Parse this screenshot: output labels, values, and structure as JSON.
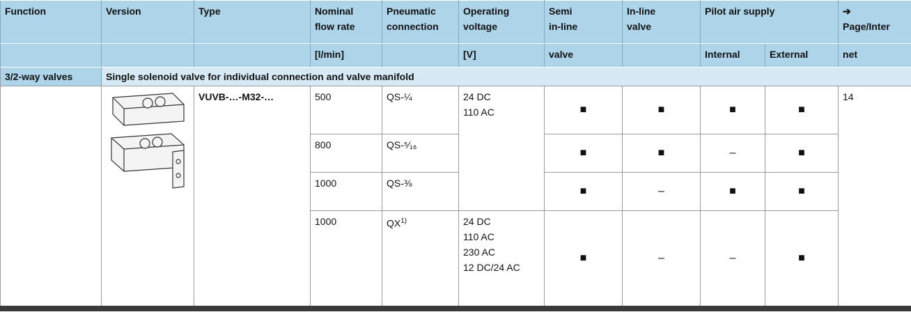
{
  "header": {
    "group": "Pilot air supply",
    "columns": [
      {
        "top": [
          "Function"
        ]
      },
      {
        "top": [
          "Version"
        ]
      },
      {
        "top": [
          "Type"
        ]
      },
      {
        "top": [
          "Nominal",
          "flow rate"
        ],
        "bottom": "[l/min]"
      },
      {
        "top": [
          "Pneumatic",
          "connection"
        ]
      },
      {
        "top": [
          "Operating",
          "voltage"
        ],
        "bottom": "[V]"
      },
      {
        "top": [
          "Semi",
          "in-line"
        ],
        "bottom": "valve"
      },
      {
        "top": [
          "In-line",
          "valve"
        ]
      },
      {
        "bottom": "Internal"
      },
      {
        "bottom": "External"
      },
      {
        "top": [
          "➔",
          "Page/Inter"
        ],
        "bottom": "net"
      }
    ]
  },
  "section": {
    "function": "3/2-way valves",
    "title": "Single solenoid valve for individual connection and valve manifold"
  },
  "product": {
    "type": "VUVB-…-M32-…",
    "page": "14",
    "voltage_groups": [
      [
        "24 DC",
        "110 AC"
      ],
      [
        "24 DC",
        "110 AC",
        "230 AC",
        "12 DC/24 AC"
      ]
    ],
    "rows": [
      {
        "flow": "500",
        "connection": "QS-¼",
        "marks": [
          "■",
          "■",
          "■",
          "■"
        ]
      },
      {
        "flow": "800",
        "connection": "QS-⁵⁄₁₆",
        "marks": [
          "■",
          "■",
          "–",
          "■"
        ]
      },
      {
        "flow": "1000",
        "connection": "QS-⅜",
        "marks": [
          "■",
          "–",
          "■",
          "■"
        ]
      },
      {
        "flow": "1000",
        "connection": "QX",
        "footnote": "1)",
        "marks": [
          "■",
          "–",
          "–",
          "■"
        ]
      }
    ]
  }
}
